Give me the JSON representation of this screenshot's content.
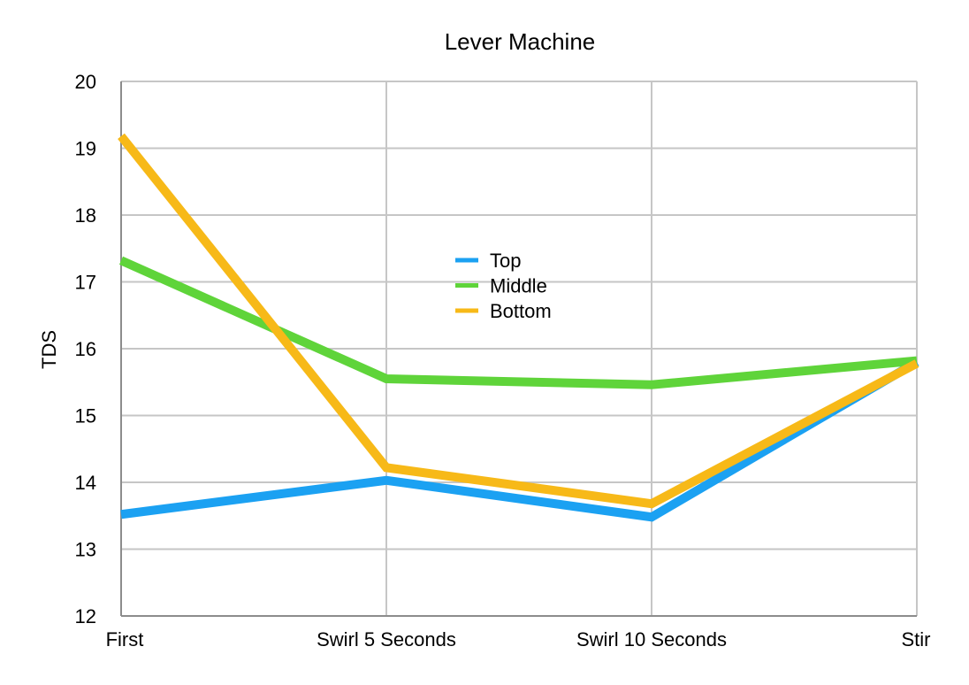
{
  "chart_data": {
    "type": "line",
    "title": "Lever Machine",
    "xlabel": "",
    "ylabel": "TDS",
    "categories": [
      "First",
      "Swirl 5 Seconds",
      "Swirl 10 Seconds",
      "Stir"
    ],
    "ylim": [
      12,
      20
    ],
    "yticks": [
      "12",
      "13",
      "14",
      "15",
      "16",
      "17",
      "18",
      "19",
      "20"
    ],
    "grid": true,
    "legend_position": "center",
    "series": [
      {
        "name": "Top",
        "color": "#1ba1f2",
        "values": [
          13.52,
          14.03,
          13.48,
          15.8
        ]
      },
      {
        "name": "Middle",
        "color": "#5fd43a",
        "values": [
          17.32,
          15.55,
          15.46,
          15.82
        ]
      },
      {
        "name": "Bottom",
        "color": "#f7b918",
        "values": [
          19.18,
          14.22,
          13.68,
          15.78
        ]
      }
    ]
  }
}
